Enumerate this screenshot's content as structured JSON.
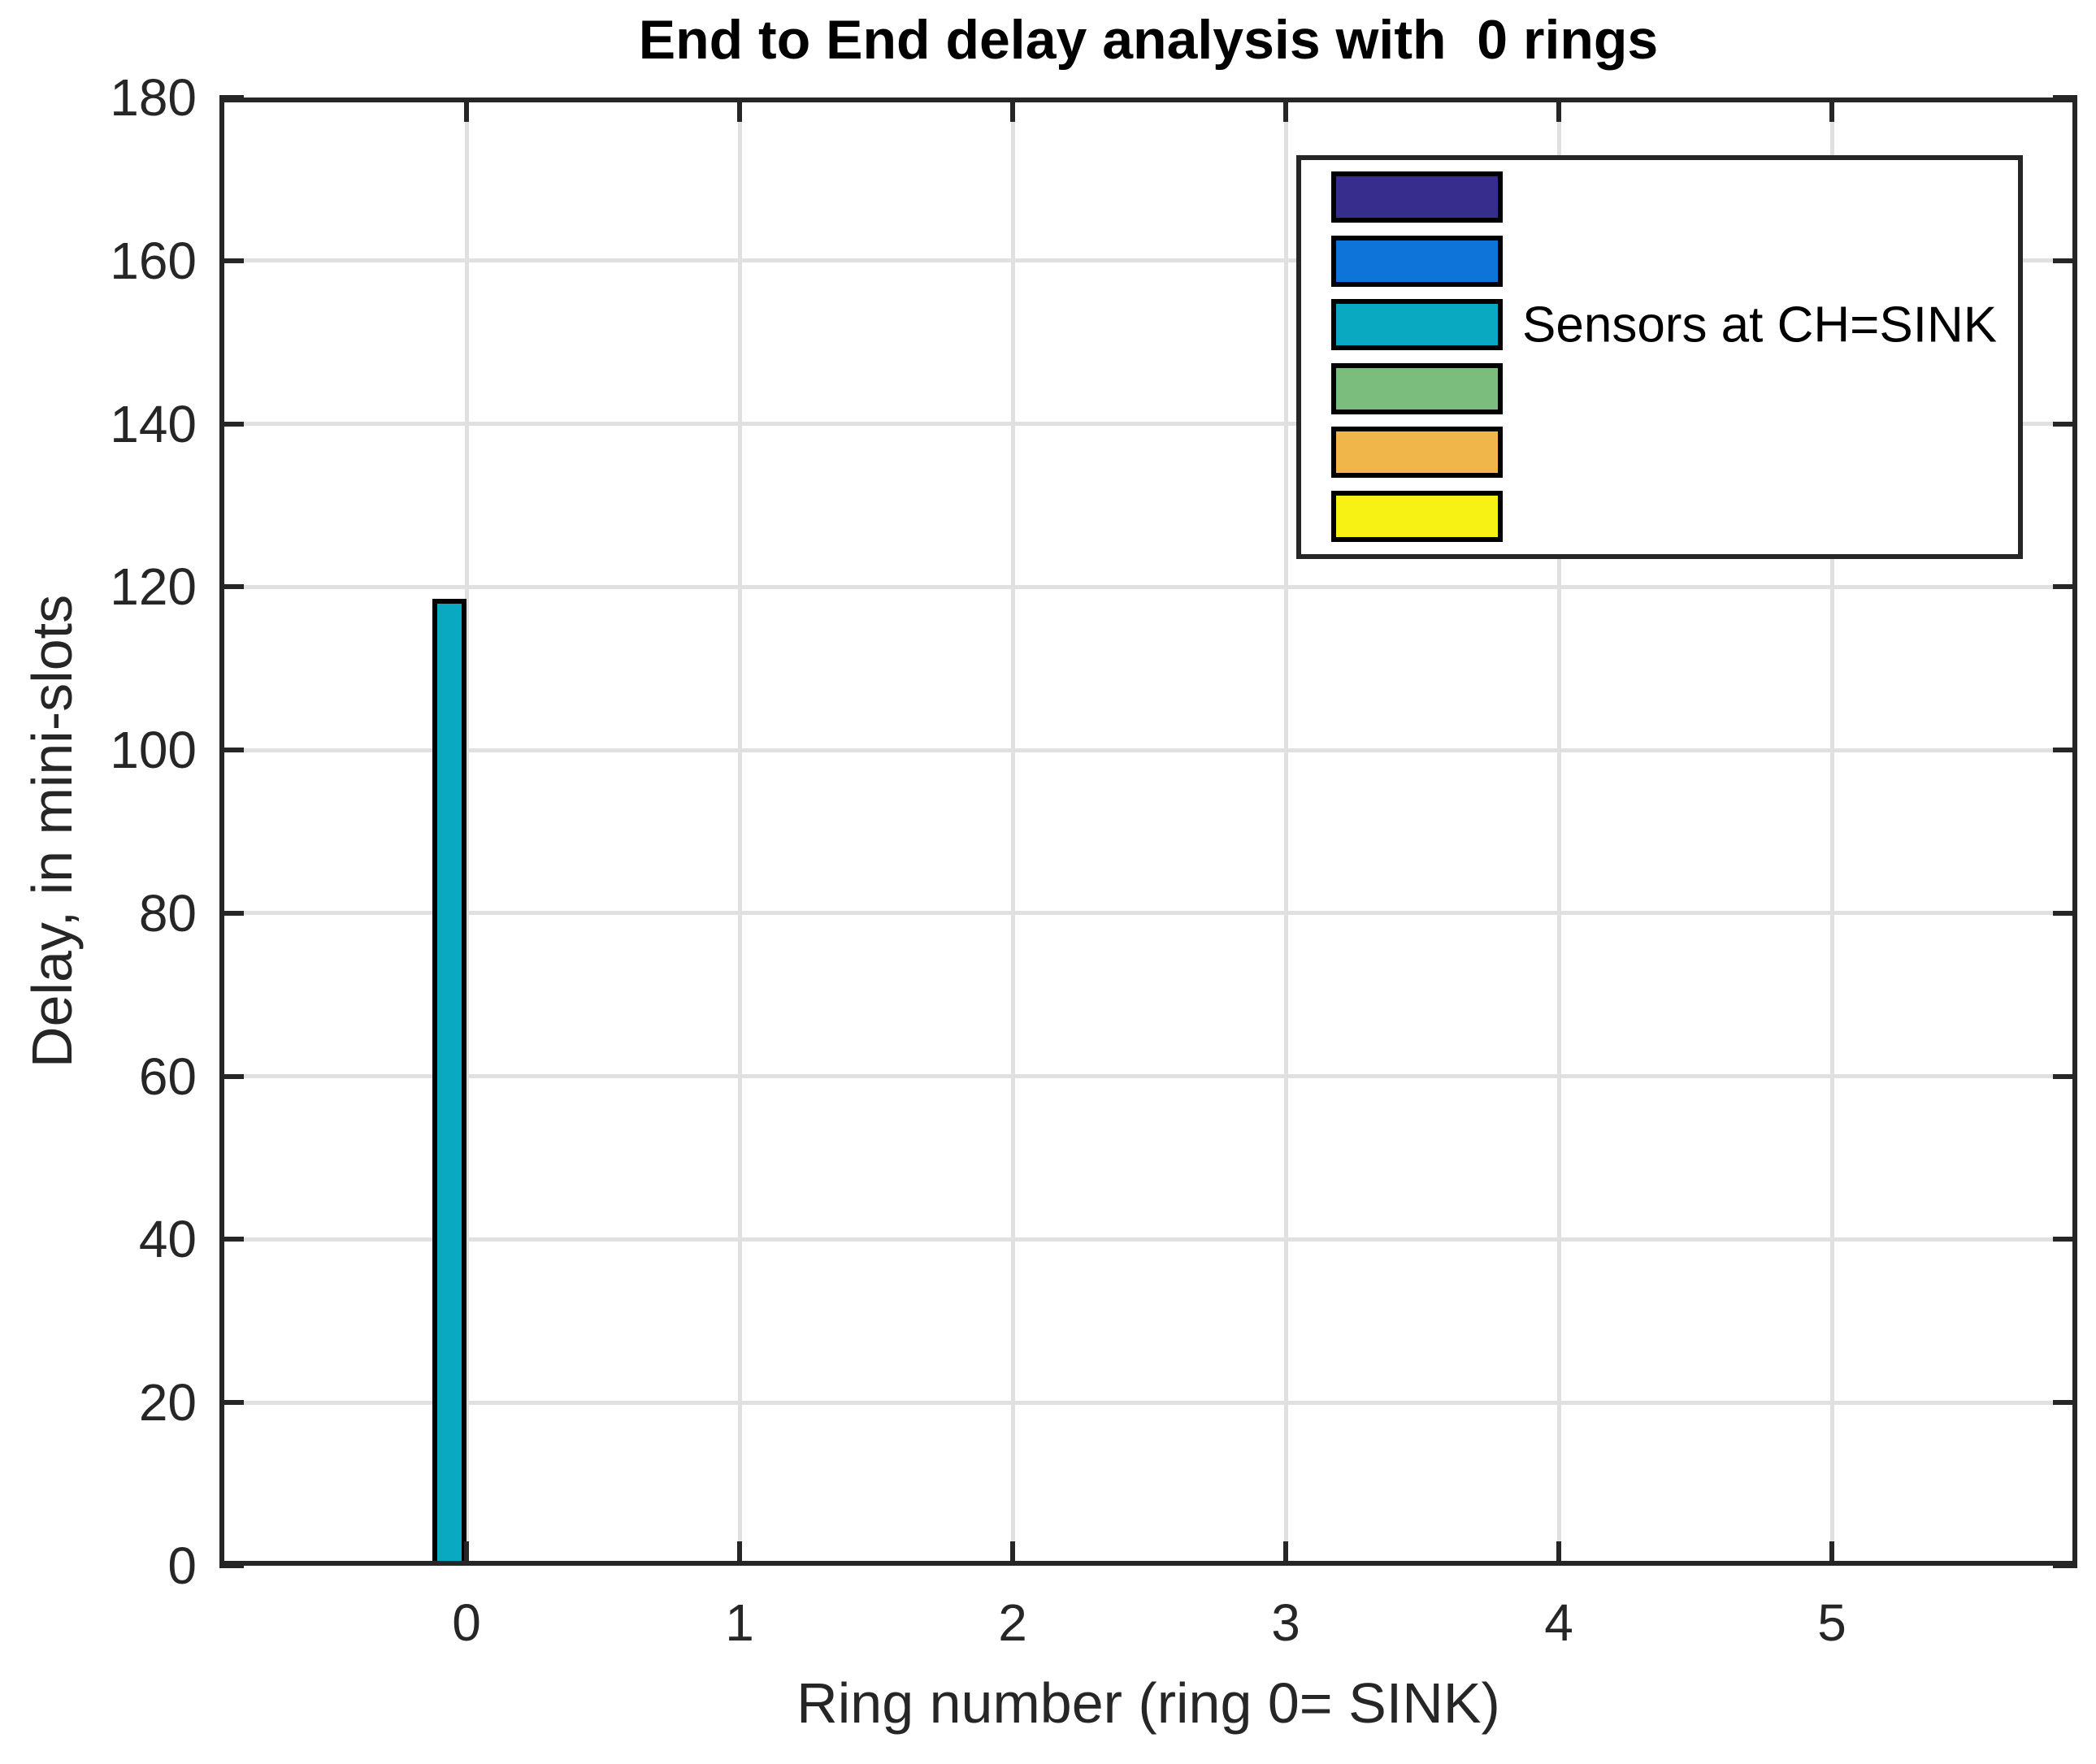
{
  "title": "End to End delay analysis with  0 rings",
  "chart_data": {
    "type": "bar",
    "title": "End to End delay analysis with  0 rings",
    "xlabel": "Ring number (ring 0= SINK)",
    "ylabel": "Delay, in mini-slots",
    "categories": [
      0,
      1,
      2,
      3,
      4,
      5
    ],
    "x_tick_labels": [
      "0",
      "1",
      "2",
      "3",
      "4",
      "5"
    ],
    "y_ticks": [
      0,
      20,
      40,
      60,
      80,
      100,
      120,
      140,
      160,
      180
    ],
    "ylim": [
      0,
      180
    ],
    "grid": true,
    "legend_position": "upper right",
    "series": [
      {
        "name": "",
        "color": "#362D8D",
        "values": [
          0,
          0,
          0,
          0,
          0,
          0
        ]
      },
      {
        "name": "",
        "color": "#0E74DA",
        "values": [
          0,
          0,
          0,
          0,
          0,
          0
        ]
      },
      {
        "name": "Sensors at CH=SINK",
        "color": "#0AA9C2",
        "values": [
          118.5,
          0,
          0,
          0,
          0,
          0
        ]
      },
      {
        "name": "",
        "color": "#7BBD7C",
        "values": [
          0,
          0,
          0,
          0,
          0,
          0
        ]
      },
      {
        "name": "",
        "color": "#F0B649",
        "values": [
          0,
          0,
          0,
          0,
          0,
          0
        ]
      },
      {
        "name": "",
        "color": "#F7F213",
        "values": [
          0,
          0,
          0,
          0,
          0,
          0
        ]
      }
    ],
    "colors": {
      "axis": "#262626",
      "grid": "#E0E0E0",
      "bar_edge": "#000000",
      "background": "#FFFFFF",
      "text": "#262626"
    }
  }
}
